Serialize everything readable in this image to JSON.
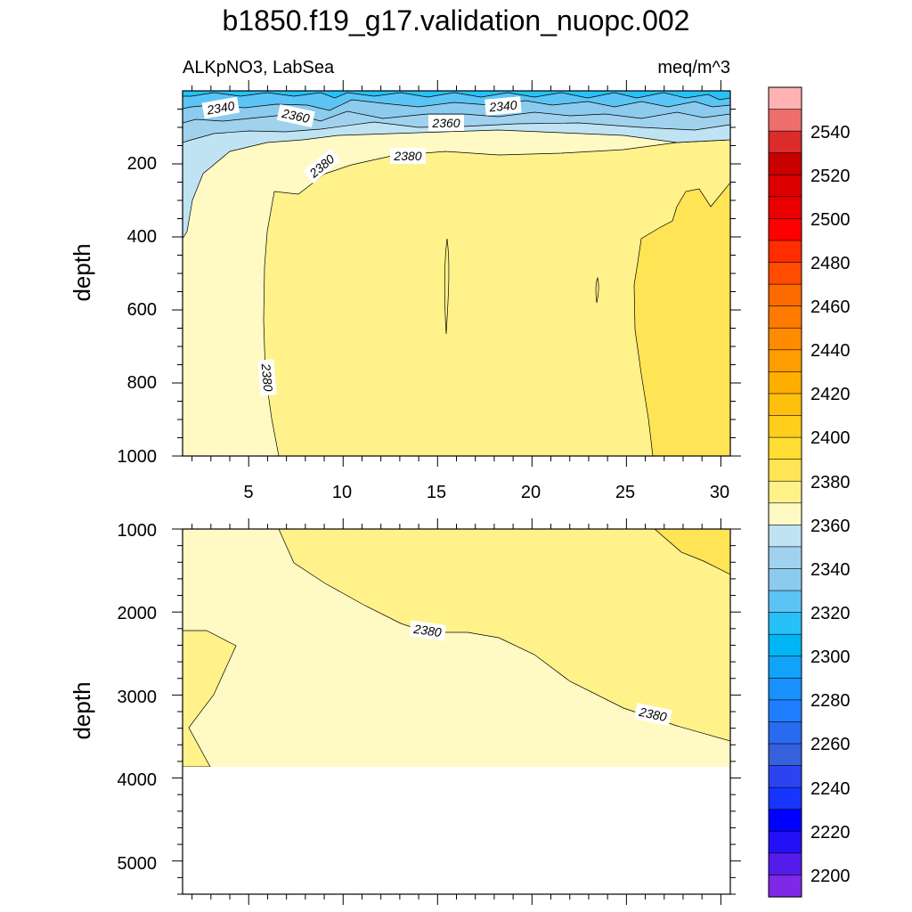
{
  "chart_data": {
    "type": "contour",
    "title": "b1850.f19_g17.validation_nuopc.002",
    "variable_label": "ALKpNO3, LabSea",
    "units_label": "meq/m^3",
    "panels": [
      {
        "name": "upper",
        "ylabel": "depth",
        "ylim": [
          0,
          1000
        ],
        "xlim": [
          1.5,
          30.5
        ],
        "yticks": [
          "200",
          "400",
          "600",
          "800",
          "1000"
        ],
        "xticks": [
          "5",
          "10",
          "15",
          "20",
          "25",
          "30"
        ],
        "contour_labels": [
          "2340",
          "2360",
          "2360",
          "2340",
          "2380",
          "2380",
          "2380"
        ]
      },
      {
        "name": "lower",
        "ylabel": "depth",
        "ylim": [
          1000,
          5400
        ],
        "xlim": [
          1.5,
          30.5
        ],
        "yticks": [
          "1000",
          "2000",
          "3000",
          "4000",
          "5000"
        ],
        "contour_labels": [
          "2380",
          "2380"
        ]
      }
    ],
    "colorbar": {
      "labels": [
        "2540",
        "2520",
        "2500",
        "2480",
        "2460",
        "2440",
        "2420",
        "2400",
        "2380",
        "2360",
        "2340",
        "2320",
        "2300",
        "2280",
        "2260",
        "2240",
        "2220",
        "2200"
      ],
      "colors": [
        "#ffb2b2",
        "#ee6e6e",
        "#dc2b2b",
        "#c80000",
        "#dc0000",
        "#ea0000",
        "#ff0000",
        "#ff2d00",
        "#ff4c00",
        "#ff6a00",
        "#ff7a00",
        "#ff8c00",
        "#ff9d00",
        "#ffae00",
        "#ffbf0e",
        "#ffce1c",
        "#ffdd33",
        "#ffe455",
        "#fff28a",
        "#fffac4",
        "#bfe3f3",
        "#a0d2ee",
        "#8ccbee",
        "#5cc4f4",
        "#27c1f8",
        "#00b5f5",
        "#12a2f7",
        "#1890fe",
        "#1f7eff",
        "#2a6af0",
        "#3561dc",
        "#2a45f0",
        "#1636ff",
        "#0000ff",
        "#2410f5",
        "#541ceb",
        "#7f28e6"
      ]
    }
  }
}
